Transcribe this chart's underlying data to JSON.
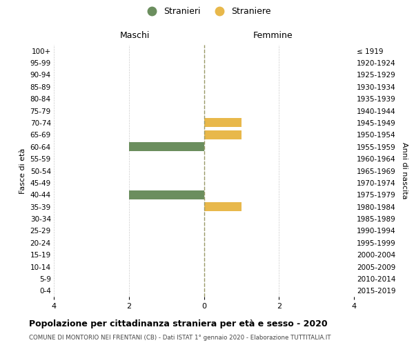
{
  "age_groups": [
    "100+",
    "95-99",
    "90-94",
    "85-89",
    "80-84",
    "75-79",
    "70-74",
    "65-69",
    "60-64",
    "55-59",
    "50-54",
    "45-49",
    "40-44",
    "35-39",
    "30-34",
    "25-29",
    "20-24",
    "15-19",
    "10-14",
    "5-9",
    "0-4"
  ],
  "birth_years": [
    "≤ 1919",
    "1920-1924",
    "1925-1929",
    "1930-1934",
    "1935-1939",
    "1940-1944",
    "1945-1949",
    "1950-1954",
    "1955-1959",
    "1960-1964",
    "1965-1969",
    "1970-1974",
    "1975-1979",
    "1980-1984",
    "1985-1989",
    "1990-1994",
    "1995-1999",
    "2000-2004",
    "2005-2009",
    "2010-2014",
    "2015-2019"
  ],
  "maschi_values": [
    0,
    0,
    0,
    0,
    0,
    0,
    0,
    0,
    -2,
    0,
    0,
    0,
    -2,
    0,
    0,
    0,
    0,
    0,
    0,
    0,
    0
  ],
  "femmine_values": [
    0,
    0,
    0,
    0,
    0,
    0,
    1,
    1,
    0,
    0,
    0,
    0,
    0,
    1,
    0,
    0,
    0,
    0,
    0,
    0,
    0
  ],
  "maschi_color": "#6b8e5e",
  "femmine_color": "#e8b84b",
  "xlim": [
    -4,
    4
  ],
  "xticks": [
    -4,
    -2,
    0,
    2,
    4
  ],
  "xticklabels": [
    "4",
    "2",
    "0",
    "2",
    "4"
  ],
  "ylabel_left": "Fasce di età",
  "ylabel_right": "Anni di nascita",
  "maschi_label": "Stranieri",
  "femmine_label": "Straniere",
  "header_maschi": "Maschi",
  "header_femmine": "Femmine",
  "title": "Popolazione per cittadinanza straniera per età e sesso - 2020",
  "subtitle": "COMUNE DI MONTORIO NEI FRENTANI (CB) - Dati ISTAT 1° gennaio 2020 - Elaborazione TUTTITALIA.IT",
  "bg_color": "#ffffff",
  "grid_color": "#cccccc",
  "bar_height": 0.75
}
